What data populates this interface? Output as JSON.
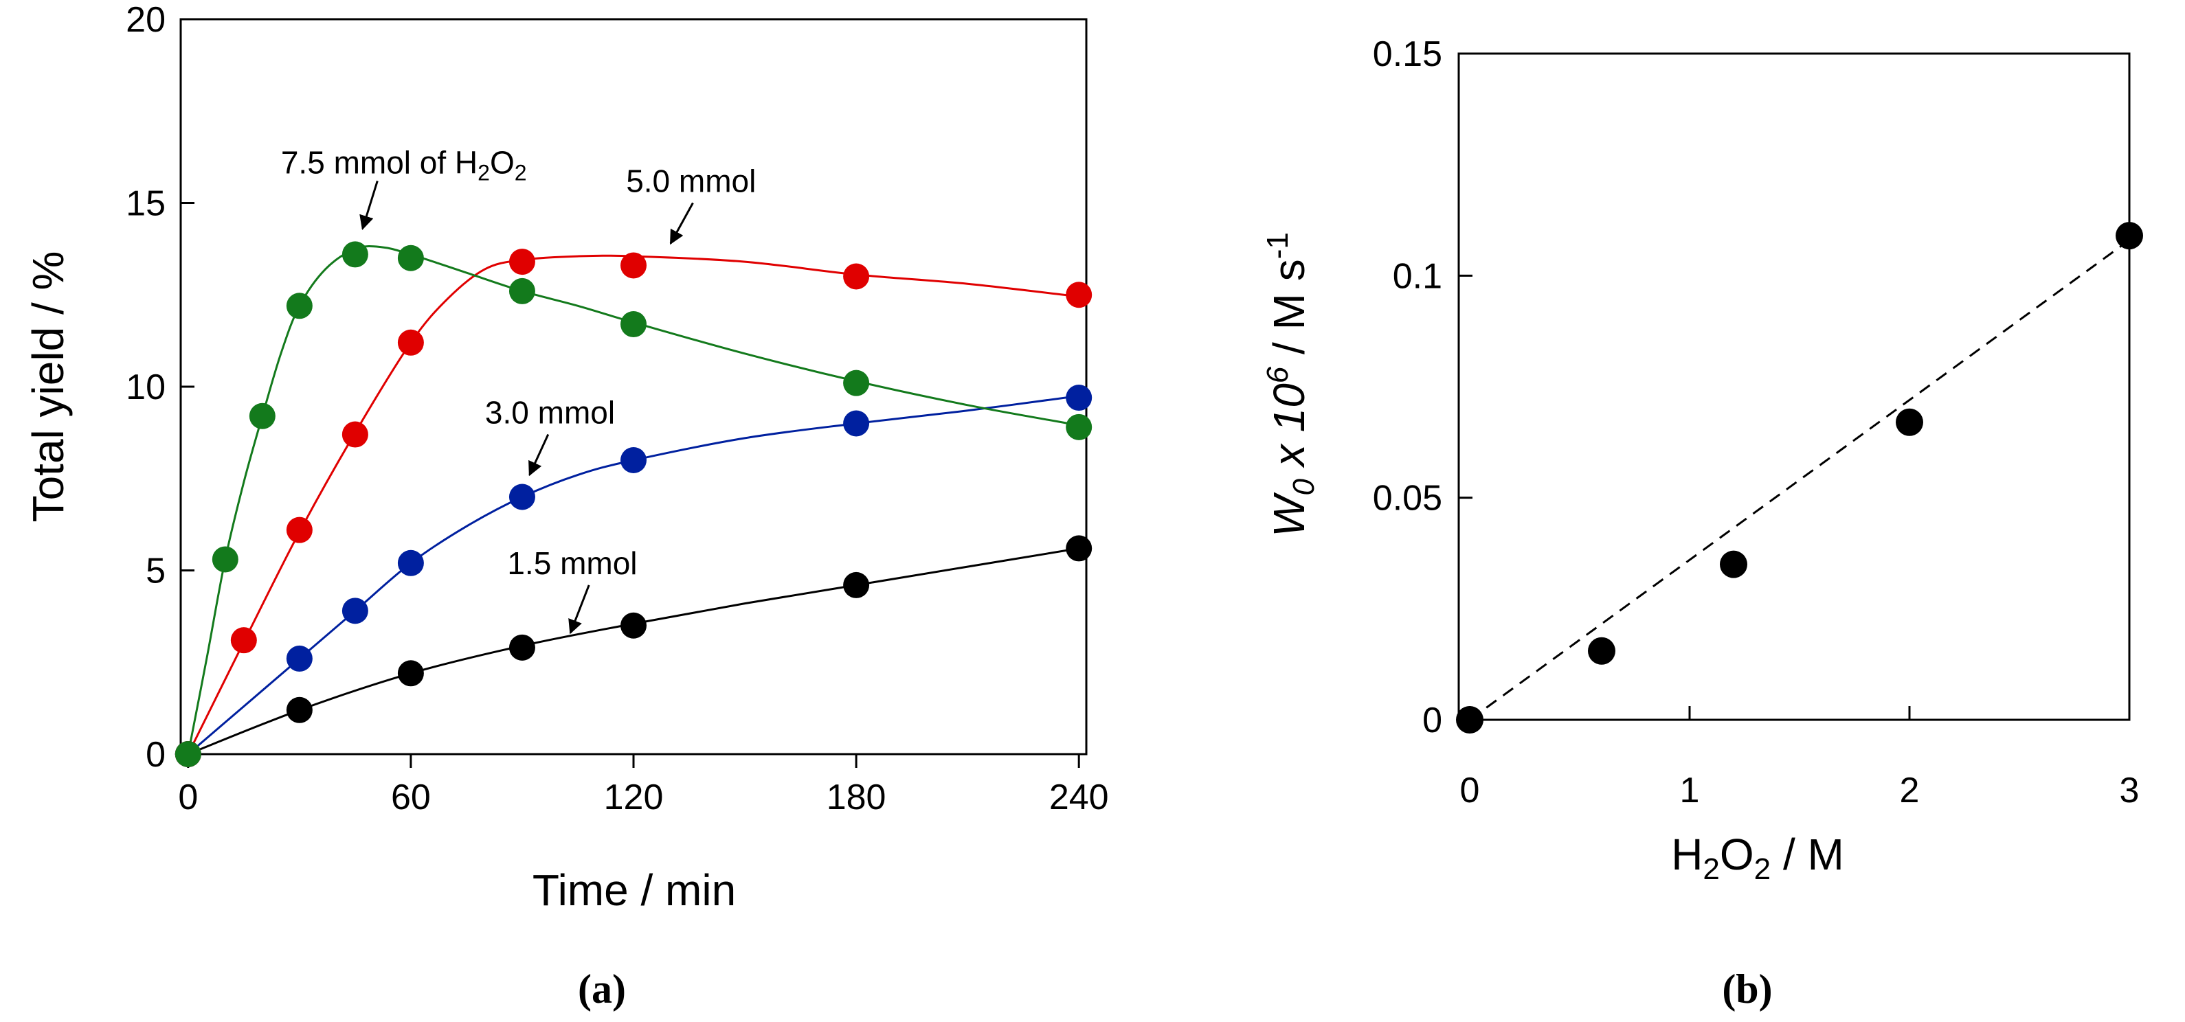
{
  "chart_data": [
    {
      "type": "line",
      "panel_label": "(a)",
      "xlabel": "Time / min",
      "ylabel": "Total yield / %",
      "xlim": [
        -2,
        242
      ],
      "ylim": [
        0,
        20
      ],
      "xticks": [
        0,
        60,
        120,
        180,
        240
      ],
      "yticks": [
        0,
        5,
        10,
        15,
        20
      ],
      "xtick_labels": [
        "0",
        "60",
        "120",
        "180",
        "240"
      ],
      "ytick_labels": [
        "0",
        "5",
        "10",
        "15",
        "20"
      ],
      "grid": false,
      "series": [
        {
          "name": "1.5 mmol",
          "color": "#000000",
          "points": [
            [
              0,
              0
            ],
            [
              30,
              1.2
            ],
            [
              60,
              2.2
            ],
            [
              90,
              2.9
            ],
            [
              120,
              3.5
            ],
            [
              180,
              4.6
            ],
            [
              240,
              5.6
            ]
          ],
          "curve": [
            [
              0,
              0
            ],
            [
              30,
              1.2
            ],
            [
              60,
              2.2
            ],
            [
              90,
              2.95
            ],
            [
              120,
              3.55
            ],
            [
              150,
              4.1
            ],
            [
              180,
              4.6
            ],
            [
              210,
              5.1
            ],
            [
              240,
              5.6
            ]
          ]
        },
        {
          "name": "3.0 mmol",
          "color": "#00209f",
          "points": [
            [
              0,
              0
            ],
            [
              30,
              2.6
            ],
            [
              45,
              3.9
            ],
            [
              60,
              5.2
            ],
            [
              90,
              7.0
            ],
            [
              120,
              8.0
            ],
            [
              180,
              9.0
            ],
            [
              240,
              9.7
            ]
          ],
          "curve": [
            [
              0,
              0
            ],
            [
              15,
              1.3
            ],
            [
              30,
              2.6
            ],
            [
              45,
              3.9
            ],
            [
              60,
              5.2
            ],
            [
              75,
              6.2
            ],
            [
              90,
              7.0
            ],
            [
              105,
              7.6
            ],
            [
              120,
              8.0
            ],
            [
              150,
              8.6
            ],
            [
              180,
              9.0
            ],
            [
              210,
              9.35
            ],
            [
              240,
              9.75
            ]
          ]
        },
        {
          "name": "5.0 mmol",
          "color": "#e00000",
          "points": [
            [
              0,
              0
            ],
            [
              15,
              3.1
            ],
            [
              30,
              6.1
            ],
            [
              45,
              8.7
            ],
            [
              60,
              11.2
            ],
            [
              90,
              13.4
            ],
            [
              120,
              13.3
            ],
            [
              180,
              13.0
            ],
            [
              240,
              12.5
            ]
          ],
          "curve": [
            [
              0,
              0
            ],
            [
              15,
              3.05
            ],
            [
              30,
              6.05
            ],
            [
              45,
              8.75
            ],
            [
              60,
              11.2
            ],
            [
              70,
              12.4
            ],
            [
              80,
              13.2
            ],
            [
              90,
              13.45
            ],
            [
              105,
              13.55
            ],
            [
              120,
              13.55
            ],
            [
              150,
              13.4
            ],
            [
              180,
              13.05
            ],
            [
              210,
              12.8
            ],
            [
              240,
              12.45
            ]
          ]
        },
        {
          "name": "7.5 mmol of H2O2",
          "color": "#137a1c",
          "points": [
            [
              0,
              0
            ],
            [
              10,
              5.3
            ],
            [
              20,
              9.2
            ],
            [
              30,
              12.2
            ],
            [
              45,
              13.6
            ],
            [
              60,
              13.5
            ],
            [
              90,
              12.6
            ],
            [
              120,
              11.7
            ],
            [
              180,
              10.1
            ],
            [
              240,
              8.9
            ]
          ],
          "curve": [
            [
              0,
              0
            ],
            [
              5,
              2.6
            ],
            [
              10,
              5.3
            ],
            [
              15,
              7.4
            ],
            [
              20,
              9.2
            ],
            [
              25,
              10.9
            ],
            [
              30,
              12.2
            ],
            [
              37,
              13.2
            ],
            [
              45,
              13.75
            ],
            [
              52,
              13.8
            ],
            [
              60,
              13.6
            ],
            [
              75,
              13.1
            ],
            [
              90,
              12.6
            ],
            [
              105,
              12.2
            ],
            [
              120,
              11.75
            ],
            [
              150,
              10.9
            ],
            [
              180,
              10.15
            ],
            [
              210,
              9.5
            ],
            [
              240,
              8.95
            ]
          ]
        }
      ],
      "annotations": [
        {
          "label": "7.5 mmol of H",
          "sub1": "2",
          "mid": "O",
          "sub2": "2",
          "at": [
            25,
            15.8
          ],
          "arrow_from": [
            51,
            15.6
          ],
          "arrow_to": [
            47,
            14.3
          ]
        },
        {
          "label": "5.0 mmol",
          "at": [
            118,
            15.3
          ],
          "arrow_from": [
            136,
            15.0
          ],
          "arrow_to": [
            130,
            13.9
          ]
        },
        {
          "label": "3.0 mmol",
          "at": [
            80,
            9.0
          ],
          "arrow_from": [
            97,
            8.7
          ],
          "arrow_to": [
            92,
            7.6
          ]
        },
        {
          "label": "1.5 mmol",
          "at": [
            86,
            4.9
          ],
          "arrow_from": [
            108,
            4.6
          ],
          "arrow_to": [
            103,
            3.3
          ]
        }
      ]
    },
    {
      "type": "scatter",
      "panel_label": "(b)",
      "xlabel": "H2O2 / M",
      "xlabel_parts": {
        "a": "H",
        "sub1": "2",
        "b": "O",
        "sub2": "2",
        "c": " / M"
      },
      "ylabel": "W0 x 10^6 / M s^-1",
      "ylabel_parts": {
        "w": "W",
        "w_sub": "0",
        "mid": " x 10",
        "exp": "6",
        "unit": " / M s",
        "unit_exp": "-1"
      },
      "xlim": [
        -0.05,
        3.0
      ],
      "ylim": [
        0,
        0.15
      ],
      "xticks": [
        0,
        1,
        2,
        3
      ],
      "yticks": [
        0,
        0.05,
        0.1,
        0.15
      ],
      "xtick_labels": [
        "0",
        "1",
        "2",
        "3"
      ],
      "ytick_labels": [
        "0",
        "0.05",
        "0.1",
        "0.15"
      ],
      "grid": false,
      "points": [
        [
          0,
          0
        ],
        [
          0.6,
          0.0155
        ],
        [
          1.2,
          0.035
        ],
        [
          2.0,
          0.067
        ],
        [
          3.0,
          0.109
        ]
      ],
      "fit_line": {
        "style": "dashed",
        "from": [
          0,
          0
        ],
        "to": [
          3.0,
          0.108
        ]
      },
      "marker_color": "#000000"
    }
  ]
}
